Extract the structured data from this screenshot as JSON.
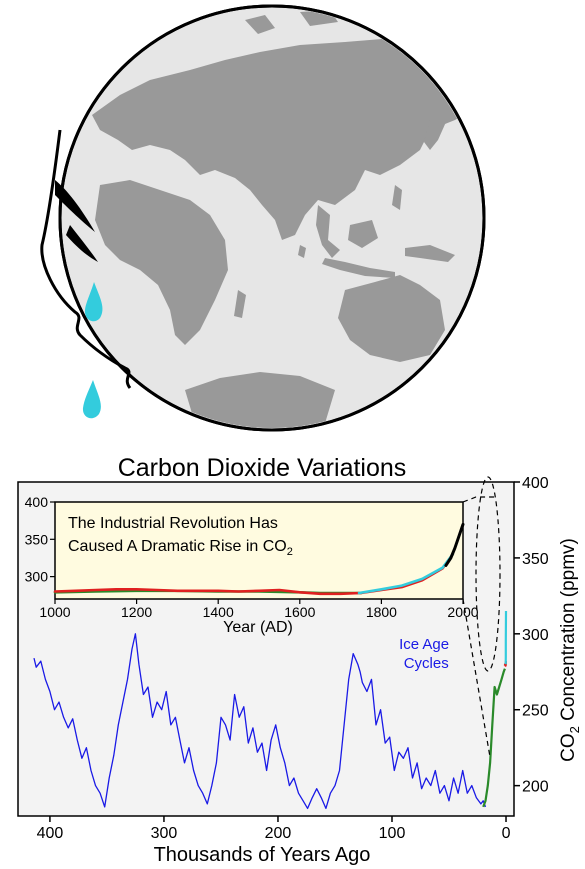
{
  "colors": {
    "globe_ocean": "#e6e6e6",
    "globe_land": "#999999",
    "outline": "#000000",
    "tear": "#33ccdd",
    "plot_bg": "#f3f3f3",
    "inset_bg": "#fffbe0",
    "ice_core": "#1a1ae6",
    "holocene": "#2a8a2a",
    "law_dome": "#e02020",
    "siple": "#33ccdd",
    "mauna_loa": "#000000"
  },
  "illustration": {
    "icons": [
      "globe-icon",
      "crying-face-icon",
      "tear-drop-icon"
    ]
  },
  "chart_data": [
    {
      "type": "line",
      "title": "Carbon Dioxide Variations",
      "xlabel": "Thousands of Years Ago",
      "ylabel": "CO2 Concentration (ppmv)",
      "ylabel_main": "CO",
      "ylabel_sub": "2",
      "ylabel_rest": " Concentration (ppmv)",
      "xlim": [
        428,
        -7
      ],
      "ylim": [
        180,
        400
      ],
      "xticks": [
        400,
        300,
        200,
        100,
        0
      ],
      "yticks": [
        200,
        250,
        300,
        350,
        400
      ],
      "y_axis_side": "right",
      "grid": false,
      "annotations": [
        {
          "text_line1": "Ice Age",
          "text_line2": "Cycles",
          "x": 70,
          "y": 290
        }
      ],
      "series": [
        {
          "color": "#1a1ae6",
          "x": [
            414,
            412,
            408,
            404,
            400,
            396,
            392,
            388,
            384,
            380,
            376,
            372,
            368,
            364,
            360,
            356,
            352,
            348,
            344,
            340,
            336,
            332,
            328,
            325,
            322,
            318,
            314,
            310,
            306,
            302,
            298,
            294,
            290,
            286,
            282,
            278,
            274,
            270,
            266,
            262,
            258,
            254,
            250,
            246,
            242,
            238,
            234,
            230,
            226,
            222,
            218,
            214,
            210,
            206,
            202,
            198,
            194,
            190,
            186,
            182,
            178,
            174,
            170,
            166,
            162,
            158,
            154,
            150,
            146,
            142,
            138,
            134,
            130,
            128,
            126,
            122,
            118,
            114,
            110,
            106,
            102,
            98,
            94,
            90,
            86,
            82,
            78,
            74,
            70,
            66,
            62,
            58,
            54,
            50,
            46,
            42,
            38,
            34,
            30,
            26,
            22,
            20,
            18
          ],
          "y": [
            284,
            278,
            282,
            270,
            262,
            250,
            255,
            245,
            238,
            244,
            230,
            218,
            225,
            210,
            200,
            195,
            186,
            205,
            220,
            240,
            255,
            270,
            290,
            300,
            280,
            260,
            265,
            245,
            255,
            250,
            262,
            240,
            245,
            230,
            215,
            225,
            210,
            200,
            195,
            188,
            200,
            215,
            245,
            240,
            230,
            260,
            245,
            252,
            228,
            238,
            222,
            228,
            210,
            230,
            240,
            225,
            215,
            200,
            205,
            195,
            190,
            185,
            192,
            198,
            192,
            185,
            195,
            200,
            210,
            240,
            270,
            287,
            280,
            275,
            268,
            262,
            270,
            240,
            250,
            228,
            232,
            210,
            222,
            218,
            225,
            205,
            215,
            198,
            205,
            200,
            210,
            195,
            200,
            190,
            205,
            195,
            210,
            195,
            200,
            192,
            188,
            190,
            186
          ]
        },
        {
          "color": "#2a8a2a",
          "x": [
            20,
            18,
            16,
            14,
            12,
            10,
            8,
            6,
            4,
            2,
            1
          ],
          "y": [
            186,
            190,
            200,
            215,
            240,
            265,
            260,
            265,
            270,
            275,
            277
          ]
        },
        {
          "color": "#e02020",
          "x": [
            1,
            0.8,
            0.6,
            0.4,
            0.2,
            0.1
          ],
          "y": [
            279,
            280,
            280,
            279,
            280,
            282
          ]
        },
        {
          "color": "#33ccdd",
          "x": [
            0.25,
            0.2,
            0.15,
            0.1,
            0.05
          ],
          "y": [
            280,
            285,
            295,
            305,
            315
          ]
        }
      ]
    },
    {
      "type": "line",
      "title": "",
      "annotation_line1": "The Industrial Revolution Has",
      "annotation_line2": "Caused A Dramatic Rise in CO",
      "annotation_sub": "2",
      "xlabel": "Year (AD)",
      "ylabel": "",
      "xlim": [
        1000,
        2000
      ],
      "ylim": [
        270,
        400
      ],
      "xticks": [
        1000,
        1200,
        1400,
        1600,
        1800,
        2000
      ],
      "yticks": [
        300,
        350,
        400
      ],
      "grid": false,
      "series": [
        {
          "color": "#2a8a2a",
          "x": [
            1000,
            1100,
            1200,
            1300,
            1400,
            1500,
            1600,
            1650,
            1700,
            1750
          ],
          "y": [
            279,
            280,
            281,
            281,
            280,
            280,
            279,
            278,
            278,
            278
          ]
        },
        {
          "color": "#e02020",
          "x": [
            1000,
            1050,
            1100,
            1150,
            1200,
            1250,
            1300,
            1350,
            1400,
            1450,
            1500,
            1550,
            1600,
            1650,
            1700,
            1750,
            1800,
            1850,
            1900,
            1950,
            1975
          ],
          "y": [
            280,
            281,
            282,
            283,
            283,
            282,
            281,
            281,
            281,
            280,
            281,
            282,
            279,
            277,
            277,
            278,
            282,
            286,
            295,
            311,
            330
          ]
        },
        {
          "color": "#33ccdd",
          "x": [
            1745,
            1800,
            1850,
            1900,
            1950,
            1975
          ],
          "y": [
            278,
            283,
            288,
            297,
            312,
            330
          ]
        },
        {
          "color": "#000000",
          "x": [
            1958,
            1970,
            1980,
            1990,
            2000
          ],
          "y": [
            315,
            325,
            338,
            354,
            370
          ]
        }
      ]
    }
  ]
}
